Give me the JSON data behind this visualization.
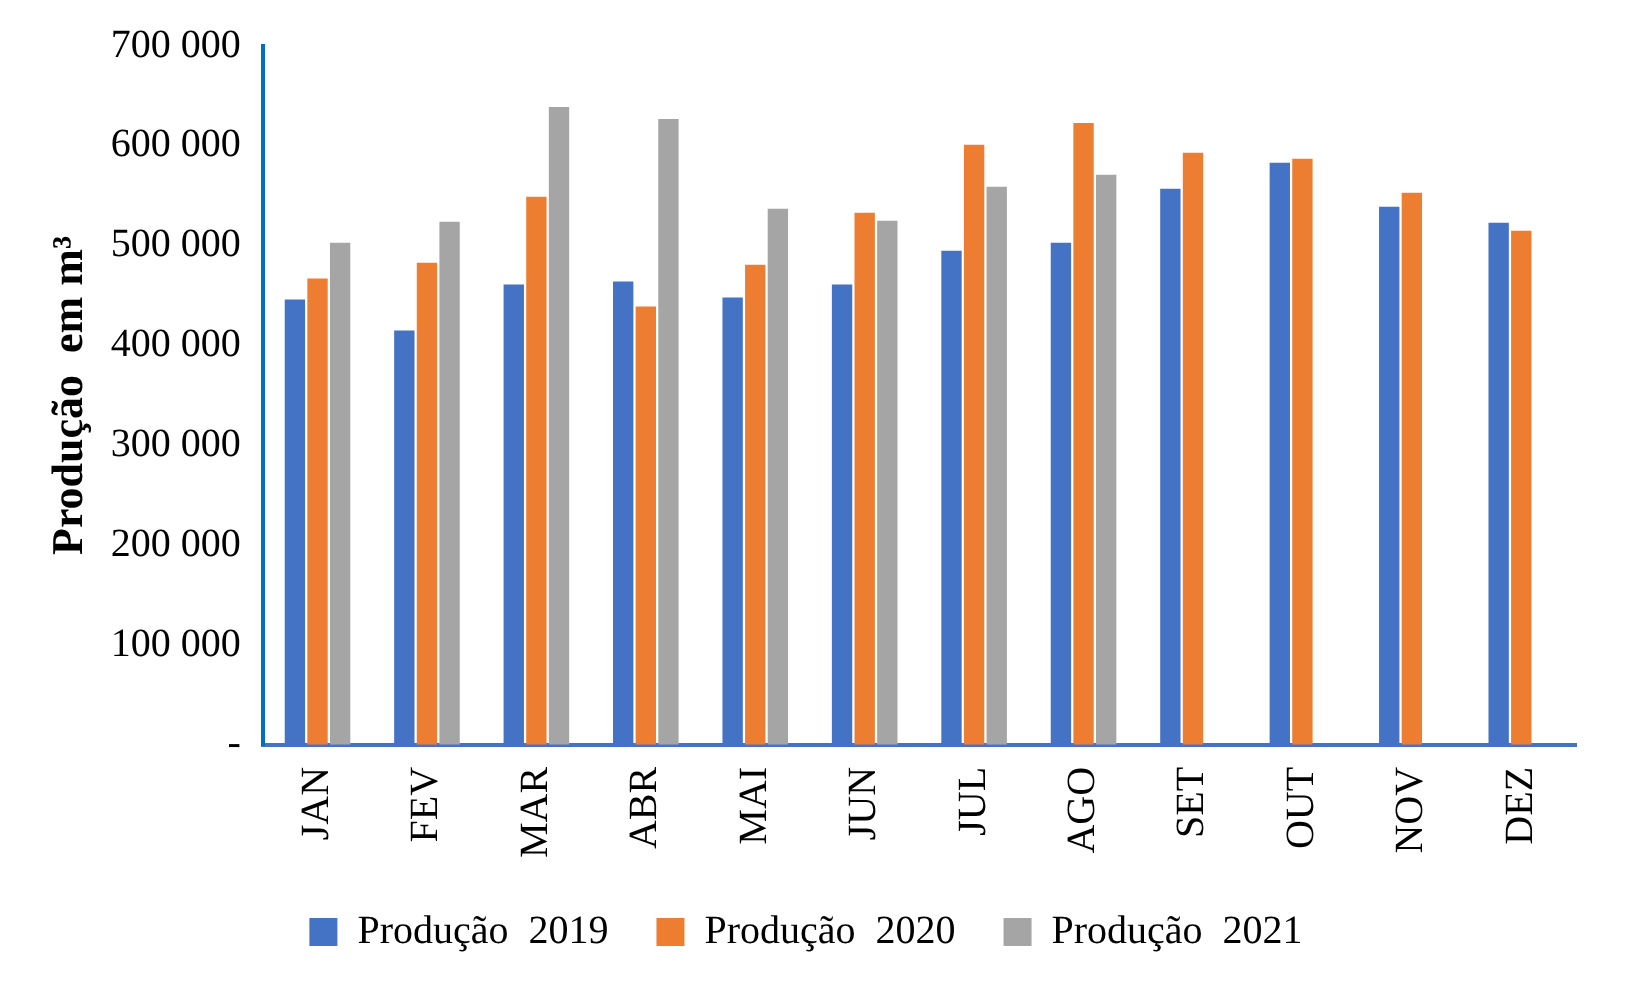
{
  "chart_data": {
    "type": "bar",
    "ylabel": "Produção  em m³",
    "categories": [
      "JAN",
      "FEV",
      "MAR",
      "ABR",
      "MAI",
      "JUN",
      "JUL",
      "AGO",
      "SET",
      "OUT",
      "NOV",
      "DEZ"
    ],
    "series": [
      {
        "name": "Produção  2019",
        "color": "#4472c4",
        "values": [
          446000,
          415000,
          461000,
          464000,
          448000,
          461000,
          495000,
          503000,
          557000,
          583000,
          539000,
          523000
        ]
      },
      {
        "name": "Produção  2020",
        "color": "#ed7d31",
        "values": [
          467000,
          483000,
          549000,
          439000,
          481000,
          533000,
          601000,
          623000,
          593000,
          587000,
          553000,
          515000
        ]
      },
      {
        "name": "Produção  2021",
        "color": "#a5a5a5",
        "values": [
          503000,
          524000,
          639000,
          627000,
          537000,
          525000,
          559000,
          571000,
          null,
          null,
          null,
          null
        ]
      }
    ],
    "ylim": [
      0,
      700000
    ],
    "yticks": [
      {
        "value": 0,
        "label": "-"
      },
      {
        "value": 100000,
        "label": "100 000"
      },
      {
        "value": 200000,
        "label": "200 000"
      },
      {
        "value": 300000,
        "label": "300 000"
      },
      {
        "value": 400000,
        "label": "400 000"
      },
      {
        "value": 500000,
        "label": "500 000"
      },
      {
        "value": 600000,
        "label": "600 000"
      },
      {
        "value": 700000,
        "label": "700 000"
      }
    ],
    "grid": false,
    "legend": "bottom"
  }
}
